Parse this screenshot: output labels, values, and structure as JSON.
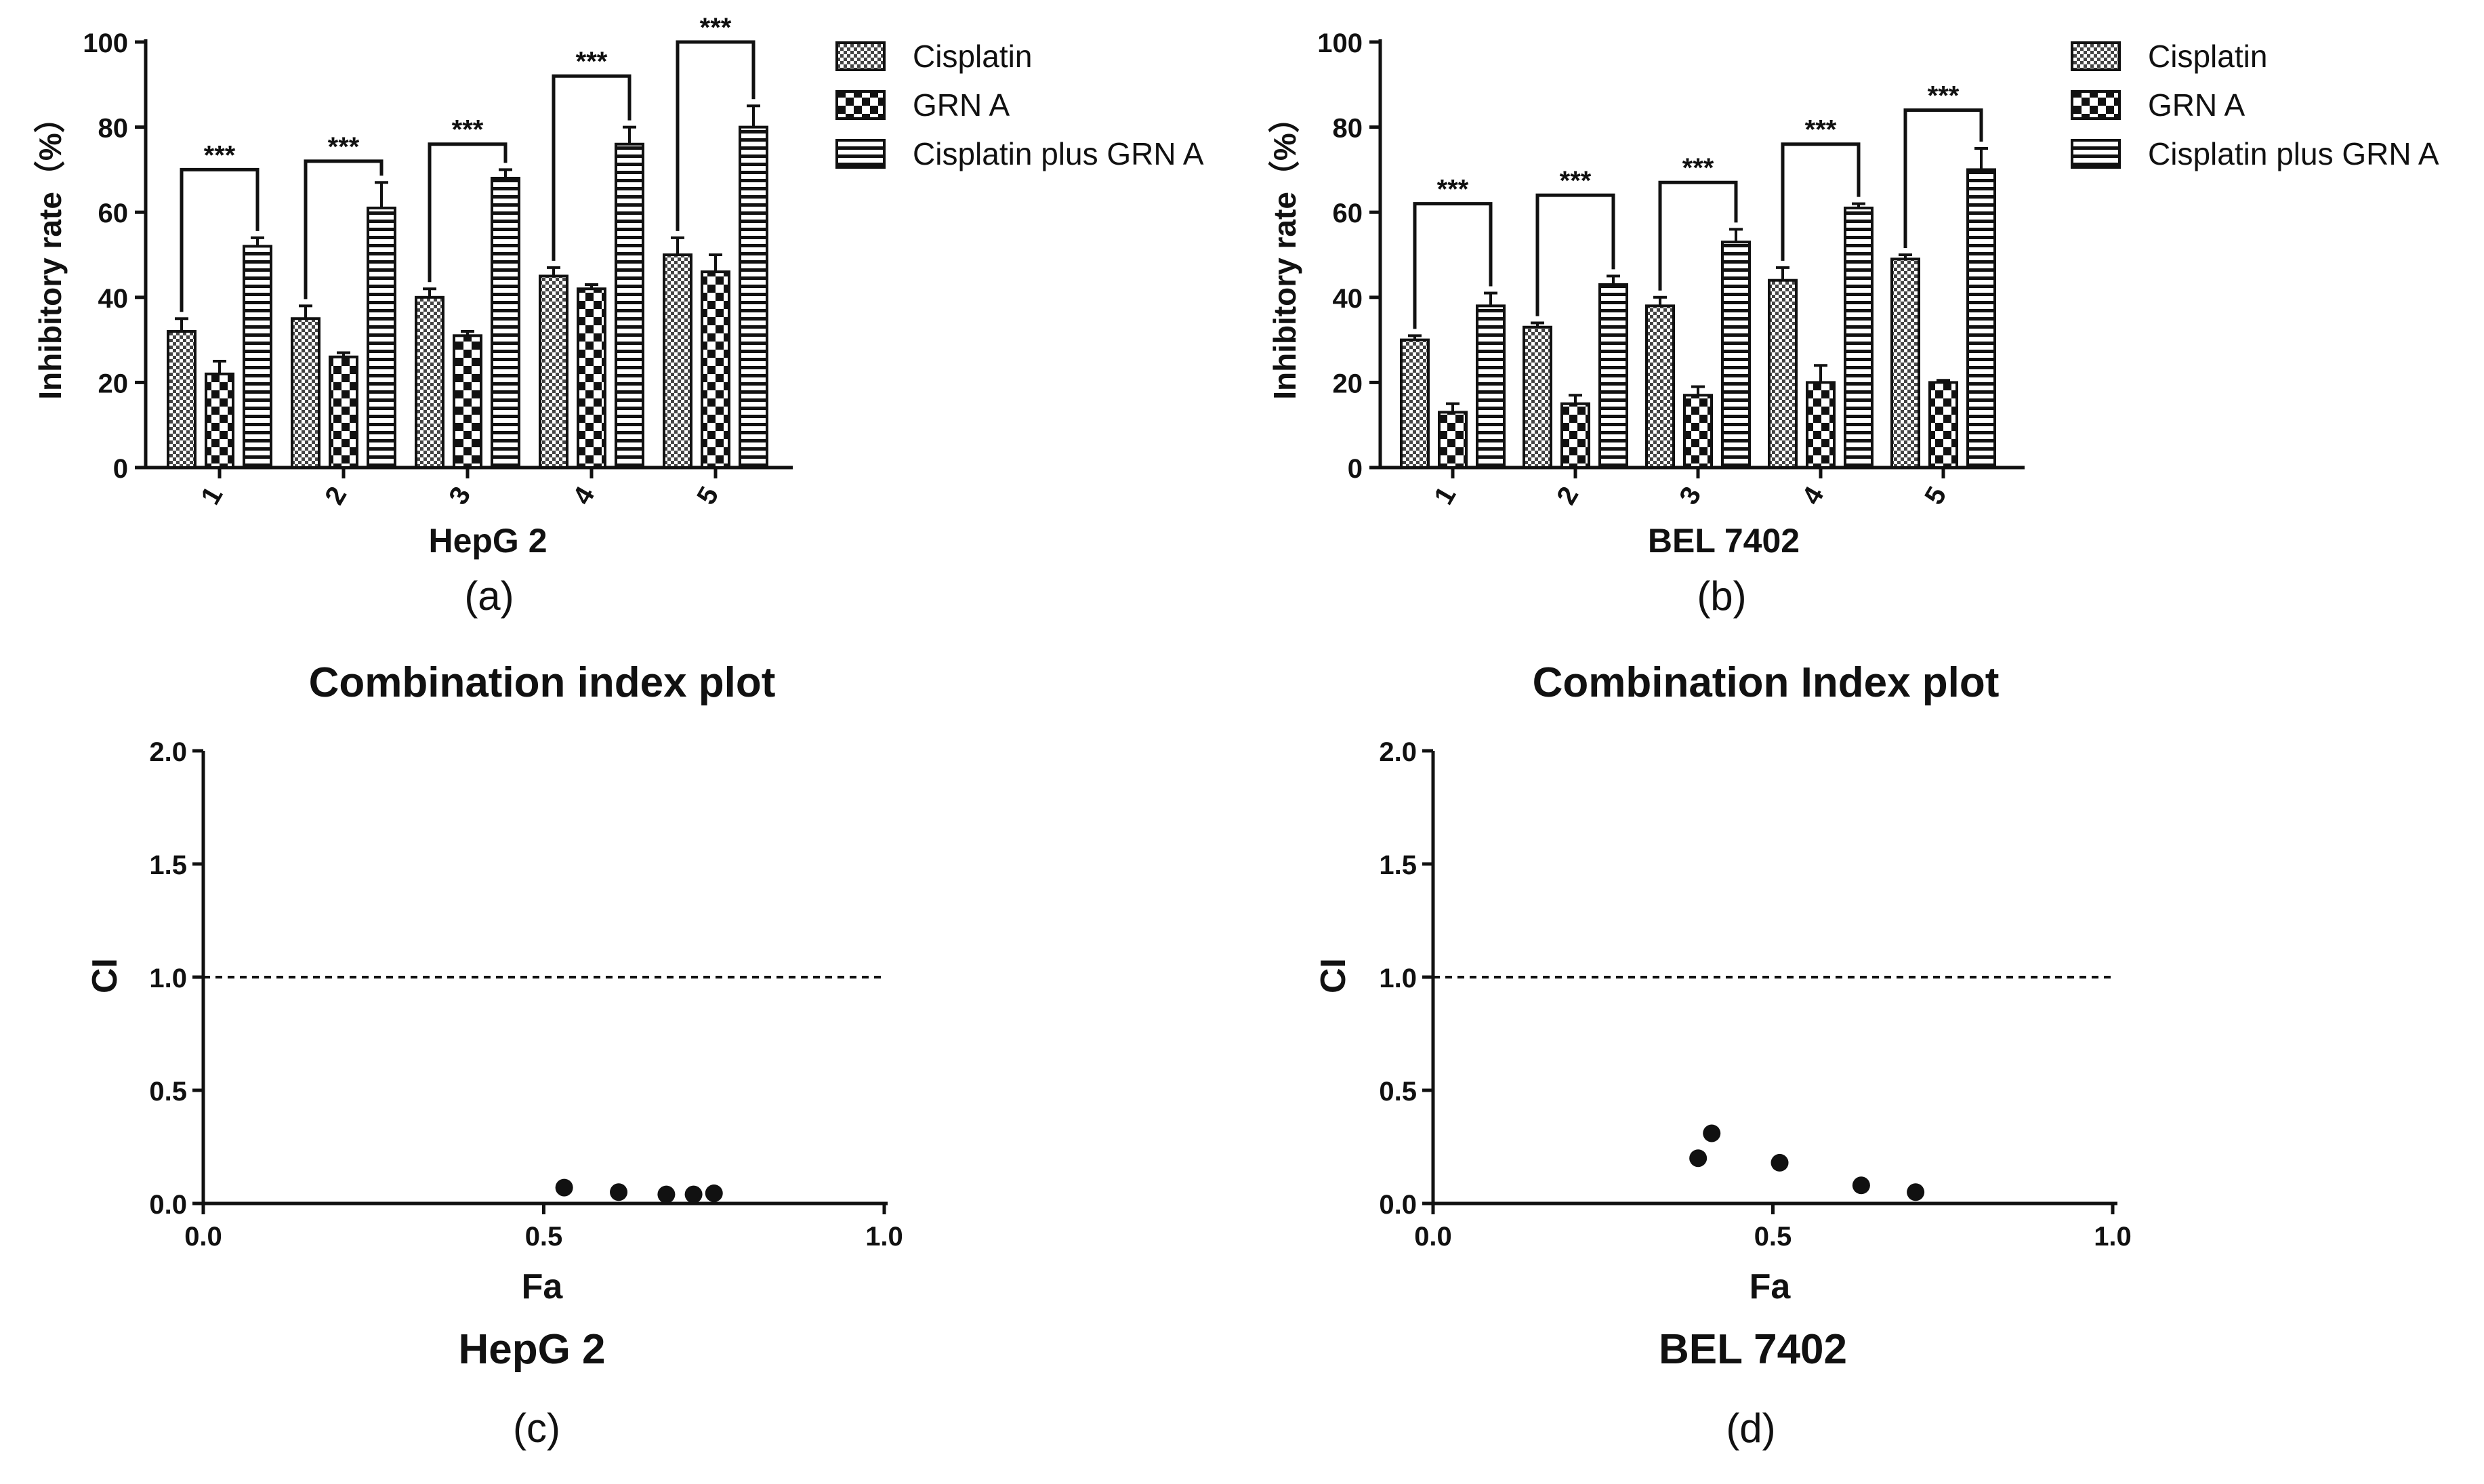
{
  "figure": {
    "panel_letters": [
      "(a)",
      "(b)",
      "(c)",
      "(d)"
    ]
  },
  "chart_data": [
    {
      "type": "bar",
      "panel": "(a)",
      "title": "",
      "xlabel": "HepG 2",
      "ylabel": "Inhibitory rate（%）",
      "categories": [
        "1",
        "2",
        "3",
        "4",
        "5"
      ],
      "ylim": [
        0,
        100
      ],
      "yticks": [
        0,
        20,
        40,
        60,
        80,
        100
      ],
      "series": [
        {
          "name": "Cisplatin",
          "pattern": "checker",
          "values": [
            32,
            35,
            40,
            45,
            50
          ],
          "errors": [
            3,
            3,
            2,
            2,
            4
          ]
        },
        {
          "name": "GRN A",
          "pattern": "bigcheck",
          "values": [
            22,
            26,
            31,
            42,
            46
          ],
          "errors": [
            3,
            1,
            1,
            1,
            4
          ]
        },
        {
          "name": "Cisplatin plus GRN A",
          "pattern": "stripes",
          "values": [
            52,
            61,
            68,
            76,
            80
          ],
          "errors": [
            2,
            6,
            2,
            4,
            5
          ]
        }
      ],
      "significance": {
        "label": "***",
        "pairs": "Cisplatin vs Cisplatin plus GRN A",
        "bracket_y": [
          70,
          72,
          76,
          92,
          100
        ]
      },
      "legend": "top-right"
    },
    {
      "type": "bar",
      "panel": "(b)",
      "title": "",
      "xlabel": "BEL 7402",
      "ylabel": "Inhibitory rate（%）",
      "categories": [
        "1",
        "2",
        "3",
        "4",
        "5"
      ],
      "ylim": [
        0,
        100
      ],
      "yticks": [
        0,
        20,
        40,
        60,
        80,
        100
      ],
      "series": [
        {
          "name": "Cisplatin",
          "pattern": "checker",
          "values": [
            30,
            33,
            38,
            44,
            49
          ],
          "errors": [
            1,
            1,
            2,
            3,
            1
          ]
        },
        {
          "name": "GRN A",
          "pattern": "bigcheck",
          "values": [
            13,
            15,
            17,
            20,
            20
          ],
          "errors": [
            2,
            2,
            2,
            4,
            0.5
          ]
        },
        {
          "name": "Cisplatin plus GRN A",
          "pattern": "stripes",
          "values": [
            38,
            43,
            53,
            61,
            70
          ],
          "errors": [
            3,
            2,
            3,
            1,
            5
          ]
        }
      ],
      "significance": {
        "label": "***",
        "pairs": "Cisplatin vs Cisplatin plus GRN A",
        "bracket_y": [
          62,
          64,
          67,
          76,
          84
        ]
      },
      "legend": "top-right"
    },
    {
      "type": "scatter",
      "panel": "(c)",
      "title": "Combination index plot",
      "xlabel": "Fa",
      "ylabel": "CI",
      "caption": "HepG 2",
      "xlim": [
        0,
        1
      ],
      "ylim": [
        0,
        2
      ],
      "xticks": [
        "0.0",
        "0.5",
        "1.0"
      ],
      "yticks": [
        "0.0",
        "0.5",
        "1.0",
        "1.5",
        "2.0"
      ],
      "reference_line": 1.0,
      "x": [
        0.53,
        0.61,
        0.68,
        0.72,
        0.75
      ],
      "y": [
        0.07,
        0.05,
        0.04,
        0.04,
        0.045
      ]
    },
    {
      "type": "scatter",
      "panel": "(d)",
      "title": "Combination Index plot",
      "xlabel": "Fa",
      "ylabel": "CI",
      "caption": "BEL 7402",
      "xlim": [
        0,
        1
      ],
      "ylim": [
        0,
        2
      ],
      "xticks": [
        "0.0",
        "0.5",
        "1.0"
      ],
      "yticks": [
        "0.0",
        "0.5",
        "1.0",
        "1.5",
        "2.0"
      ],
      "reference_line": 1.0,
      "x": [
        0.39,
        0.41,
        0.51,
        0.63,
        0.71
      ],
      "y": [
        0.2,
        0.31,
        0.18,
        0.08,
        0.05
      ]
    }
  ]
}
